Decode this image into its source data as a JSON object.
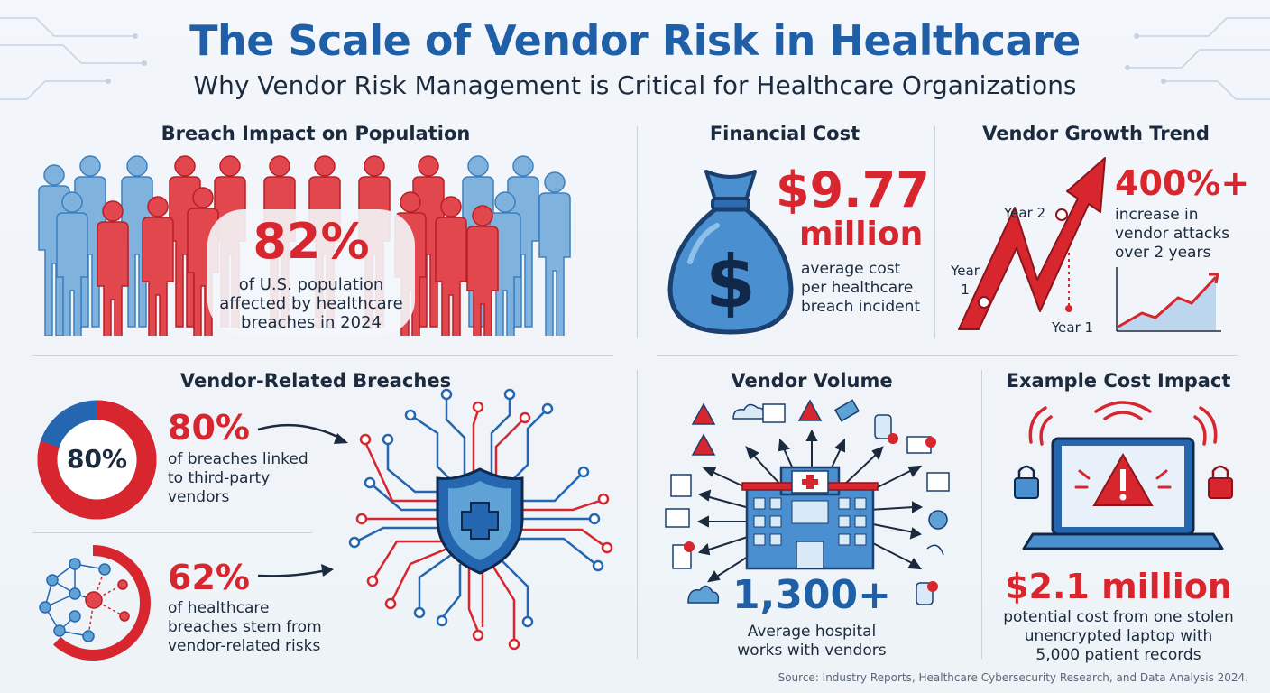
{
  "header": {
    "title": "The Scale of Vendor Risk in Healthcare",
    "subtitle": "Why Vendor Risk Management is Critical for Healthcare Organizations"
  },
  "population": {
    "heading": "Breach Impact on Population",
    "value": "82%",
    "caption_line1": "of U.S. population",
    "caption_line2": "affected by healthcare",
    "caption_line3": "breaches in 2024"
  },
  "financial": {
    "heading": "Financial Cost",
    "value": "$9.77",
    "unit": "million",
    "caption_line1": "average cost",
    "caption_line2": "per healthcare",
    "caption_line3": "breach incident"
  },
  "growth": {
    "heading": "Vendor Growth Trend",
    "value": "400%+",
    "caption_line1": "increase in",
    "caption_line2": "vendor attacks",
    "caption_line3": "over 2 years",
    "label_year2": "Year 2",
    "label_year1_left_a": "Year",
    "label_year1_left_b": "1",
    "label_year1_bottom": "Year 1"
  },
  "vendor_breaches": {
    "heading": "Vendor-Related Breaches",
    "donut_label": "80%",
    "donut_fraction": 0.8,
    "stat1_value": "80%",
    "stat1_line1": "of breaches linked",
    "stat1_line2": "to third-party",
    "stat1_line3": "vendors",
    "stat2_value": "62%",
    "stat2_fraction": 0.62,
    "stat2_line1": "of healthcare",
    "stat2_line2": "breaches stem from",
    "stat2_line3": "vendor-related risks"
  },
  "volume": {
    "heading": "Vendor Volume",
    "value": "1,300+",
    "caption_line1": "Average hospital",
    "caption_line2": "works with vendors"
  },
  "example": {
    "heading": "Example Cost Impact",
    "value": "$2.1 million",
    "caption_line1": "potential cost from one stolen",
    "caption_line2": "unencrypted laptop with",
    "caption_line3": "5,000 patient records"
  },
  "footer": {
    "source": "Source: Industry Reports, Healthcare Cybersecurity Research, and Data Analysis 2024."
  },
  "colors": {
    "blue": "#1f5fa8",
    "light_blue": "#5fa3d6",
    "red": "#d7262e",
    "dark": "#1b2a3d"
  }
}
